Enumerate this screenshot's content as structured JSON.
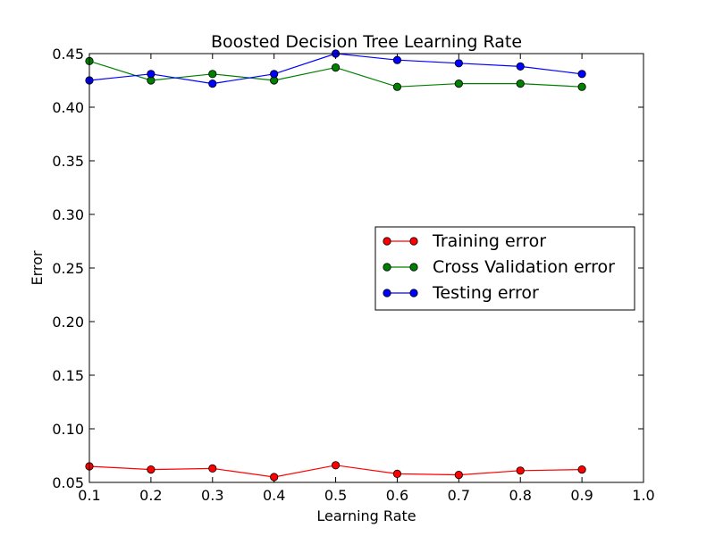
{
  "chart_data": {
    "type": "line",
    "title": "Boosted Decision Tree Learning Rate",
    "xlabel": "Learning Rate",
    "ylabel": "Error",
    "xlim": [
      0.1,
      1.0
    ],
    "ylim": [
      0.05,
      0.45
    ],
    "xticks": [
      "0.1",
      "0.2",
      "0.3",
      "0.4",
      "0.5",
      "0.6",
      "0.7",
      "0.8",
      "0.9",
      "1.0"
    ],
    "yticks": [
      "0.05",
      "0.10",
      "0.15",
      "0.20",
      "0.25",
      "0.30",
      "0.35",
      "0.40",
      "0.45"
    ],
    "grid": false,
    "legend_position": "center-right",
    "x": [
      0.1,
      0.2,
      0.3,
      0.4,
      0.5,
      0.6,
      0.7,
      0.8,
      0.9
    ],
    "series": [
      {
        "name": "Training error",
        "color": "#ff0000",
        "values": [
          0.065,
          0.062,
          0.063,
          0.055,
          0.066,
          0.058,
          0.057,
          0.061,
          0.062
        ]
      },
      {
        "name": "Cross Validation error",
        "color": "#008000",
        "values": [
          0.443,
          0.425,
          0.431,
          0.425,
          0.437,
          0.419,
          0.422,
          0.422,
          0.419
        ]
      },
      {
        "name": "Testing error",
        "color": "#0000ff",
        "values": [
          0.425,
          0.431,
          0.422,
          0.431,
          0.45,
          0.444,
          0.441,
          0.438,
          0.431
        ]
      }
    ]
  }
}
